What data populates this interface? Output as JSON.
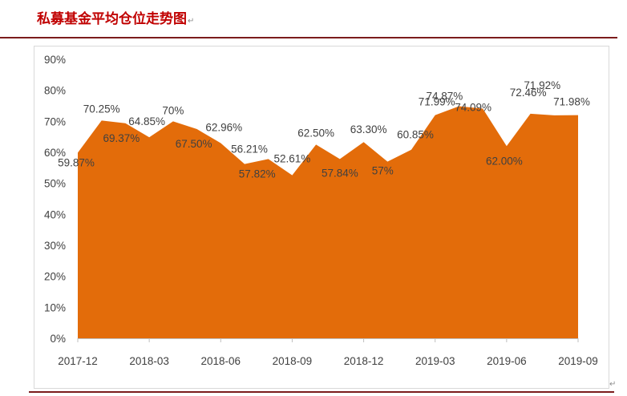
{
  "document": {
    "title": "私募基金平均仓位走势图",
    "title_mark": "↵",
    "end_mark": "↵"
  },
  "colors": {
    "title": "#c00000",
    "area_fill": "#e36c0a",
    "rule": "#7b1c1c",
    "text": "#404040"
  },
  "chart_data": {
    "type": "area",
    "title": "",
    "xlabel": "",
    "ylabel": "",
    "ylim": [
      0,
      90
    ],
    "y_ticks": [
      "0%",
      "10%",
      "20%",
      "30%",
      "40%",
      "50%",
      "60%",
      "70%",
      "80%",
      "90%"
    ],
    "x_tick_labels": [
      "2017-12",
      "2018-03",
      "2018-06",
      "2018-09",
      "2018-12",
      "2019-03",
      "2019-06",
      "2019-09"
    ],
    "grid": false,
    "legend": "none",
    "x": [
      "2017-12",
      "2018-01",
      "2018-02",
      "2018-03",
      "2018-04",
      "2018-05",
      "2018-06",
      "2018-07",
      "2018-08",
      "2018-09",
      "2018-10",
      "2018-11",
      "2018-12",
      "2019-01",
      "2019-02",
      "2019-03",
      "2019-04",
      "2019-05",
      "2019-06",
      "2019-07",
      "2019-08",
      "2019-09"
    ],
    "values": [
      59.87,
      70.25,
      69.37,
      64.85,
      70.0,
      67.5,
      62.96,
      56.21,
      57.82,
      52.61,
      62.5,
      57.84,
      63.3,
      57.0,
      60.85,
      71.99,
      74.87,
      74.09,
      62.0,
      72.46,
      71.92,
      71.98
    ],
    "data_labels": [
      "59.87%",
      "70.25%",
      "69.37%",
      "64.85%",
      "70%",
      "67.50%",
      "62.96%",
      "56.21%",
      "57.82%",
      "52.61%",
      "62.50%",
      "57.84%",
      "63.30%",
      "57%",
      "60.85%",
      "71.99%",
      "74.87%",
      "74.09%",
      "62.00%",
      "72.46%",
      "71.92%",
      "71.98%"
    ]
  }
}
